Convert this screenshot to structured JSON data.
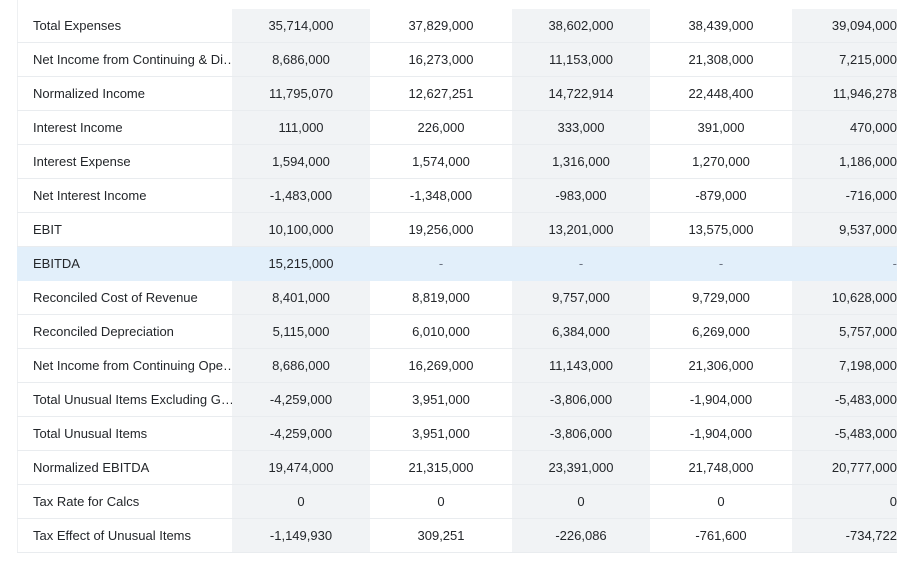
{
  "rows": [
    {
      "label": "Total Expenses",
      "values": [
        "35,714,000",
        "37,829,000",
        "38,602,000",
        "38,439,000",
        "39,094,000"
      ]
    },
    {
      "label": "Net Income from Continuing & Discontinued Operation",
      "values": [
        "8,686,000",
        "16,273,000",
        "11,153,000",
        "21,308,000",
        "7,215,000"
      ]
    },
    {
      "label": "Normalized Income",
      "values": [
        "11,795,070",
        "12,627,251",
        "14,722,914",
        "22,448,400",
        "11,946,278"
      ]
    },
    {
      "label": "Interest Income",
      "values": [
        "111,000",
        "226,000",
        "333,000",
        "391,000",
        "470,000"
      ]
    },
    {
      "label": "Interest Expense",
      "values": [
        "1,594,000",
        "1,574,000",
        "1,316,000",
        "1,270,000",
        "1,186,000"
      ]
    },
    {
      "label": "Net Interest Income",
      "values": [
        "-1,483,000",
        "-1,348,000",
        "-983,000",
        "-879,000",
        "-716,000"
      ]
    },
    {
      "label": "EBIT",
      "values": [
        "10,100,000",
        "19,256,000",
        "13,201,000",
        "13,575,000",
        "9,537,000"
      ]
    },
    {
      "label": "EBITDA",
      "values": [
        "15,215,000",
        "-",
        "-",
        "-",
        "-"
      ],
      "highlighted": true
    },
    {
      "label": "Reconciled Cost of Revenue",
      "values": [
        "8,401,000",
        "8,819,000",
        "9,757,000",
        "9,729,000",
        "10,628,000"
      ]
    },
    {
      "label": "Reconciled Depreciation",
      "values": [
        "5,115,000",
        "6,010,000",
        "6,384,000",
        "6,269,000",
        "5,757,000"
      ]
    },
    {
      "label": "Net Income from Continuing Operation Net Minority Interest",
      "values": [
        "8,686,000",
        "16,269,000",
        "11,143,000",
        "21,306,000",
        "7,198,000"
      ]
    },
    {
      "label": "Total Unusual Items Excluding Goodwill",
      "values": [
        "-4,259,000",
        "3,951,000",
        "-3,806,000",
        "-1,904,000",
        "-5,483,000"
      ]
    },
    {
      "label": "Total Unusual Items",
      "values": [
        "-4,259,000",
        "3,951,000",
        "-3,806,000",
        "-1,904,000",
        "-5,483,000"
      ]
    },
    {
      "label": "Normalized EBITDA",
      "values": [
        "19,474,000",
        "21,315,000",
        "23,391,000",
        "21,748,000",
        "20,777,000"
      ]
    },
    {
      "label": "Tax Rate for Calcs",
      "values": [
        "0",
        "0",
        "0",
        "0",
        "0"
      ]
    },
    {
      "label": "Tax Effect of Unusual Items",
      "values": [
        "-1,149,930",
        "309,251",
        "-226,086",
        "-761,600",
        "-734,722"
      ]
    }
  ]
}
